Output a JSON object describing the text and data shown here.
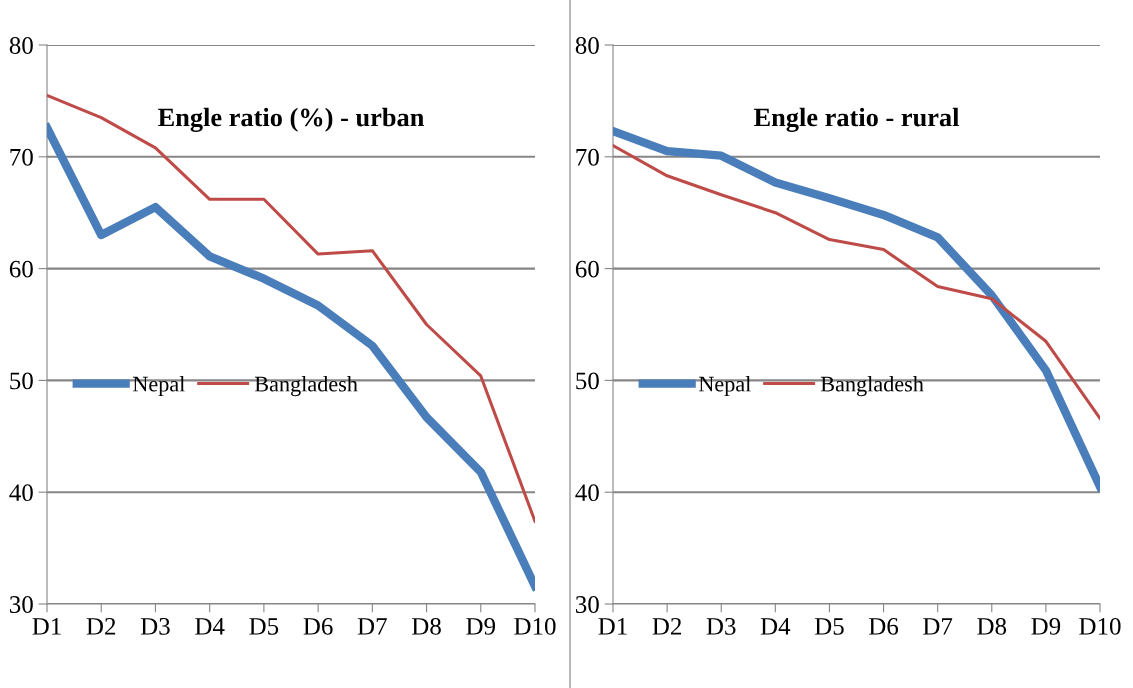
{
  "chart_data": [
    {
      "type": "line",
      "title": "Engle ratio (%) - urban",
      "categories": [
        "D1",
        "D2",
        "D3",
        "D4",
        "D5",
        "D6",
        "D7",
        "D8",
        "D9",
        "D10"
      ],
      "series": [
        {
          "name": "Nepal",
          "color": "#4a7ebb",
          "values": [
            72.6,
            63.0,
            65.5,
            61.1,
            59.1,
            56.7,
            53.1,
            46.7,
            41.8,
            31.6
          ]
        },
        {
          "name": "Bangladesh",
          "color": "#be4b48",
          "values": [
            75.5,
            73.5,
            70.8,
            66.2,
            66.2,
            61.3,
            61.6,
            55.0,
            50.4,
            37.4
          ]
        }
      ],
      "ylim": [
        30,
        80
      ],
      "yticks": [
        30,
        40,
        50,
        60,
        70,
        80
      ],
      "grid": "y",
      "legend": "left",
      "marker": "none",
      "line_style": "solid"
    },
    {
      "type": "line",
      "title": "Engle ratio - rural",
      "categories": [
        "D1",
        "D2",
        "D3",
        "D4",
        "D5",
        "D6",
        "D7",
        "D8",
        "D9",
        "D10"
      ],
      "series": [
        {
          "name": "Nepal",
          "color": "#4a7ebb",
          "values": [
            72.3,
            70.5,
            70.1,
            67.7,
            66.3,
            64.8,
            62.8,
            57.6,
            50.9,
            40.5
          ]
        },
        {
          "name": "Bangladesh",
          "color": "#be4b48",
          "values": [
            71.0,
            68.3,
            66.6,
            65.0,
            62.6,
            61.7,
            58.4,
            57.3,
            53.5,
            46.6
          ]
        }
      ],
      "ylim": [
        30,
        80
      ],
      "yticks": [
        30,
        40,
        50,
        60,
        70,
        80
      ],
      "grid": "y",
      "legend": "left",
      "marker": "none",
      "line_style": "solid"
    }
  ]
}
